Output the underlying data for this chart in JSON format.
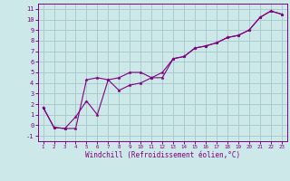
{
  "xlabel": "Windchill (Refroidissement éolien,°C)",
  "bg_color": "#cce8e8",
  "line_color": "#800080",
  "grid_color": "#aacccc",
  "x_ticks": [
    1,
    2,
    3,
    4,
    5,
    6,
    7,
    8,
    9,
    10,
    11,
    12,
    13,
    14,
    15,
    16,
    17,
    18,
    19,
    20,
    21,
    22,
    23
  ],
  "y_ticks": [
    -1,
    0,
    1,
    2,
    3,
    4,
    5,
    6,
    7,
    8,
    9,
    10,
    11
  ],
  "ylim": [
    -1.5,
    11.5
  ],
  "xlim": [
    0.5,
    23.5
  ],
  "line1_x": [
    1,
    2,
    3,
    4,
    5,
    6,
    7,
    8,
    9,
    10,
    11,
    12,
    13,
    14,
    15,
    16,
    17,
    18,
    19,
    20,
    21,
    22,
    23
  ],
  "line1_y": [
    1.7,
    -0.2,
    -0.3,
    -0.3,
    4.3,
    4.5,
    4.3,
    4.5,
    5.0,
    5.0,
    4.5,
    4.5,
    6.3,
    6.5,
    7.3,
    7.5,
    7.8,
    8.3,
    8.5,
    9.0,
    10.2,
    10.8,
    10.5
  ],
  "line2_x": [
    1,
    2,
    3,
    4,
    5,
    6,
    7,
    8,
    9,
    10,
    11,
    12,
    13,
    14,
    15,
    16,
    17,
    18,
    19,
    20,
    21,
    22,
    23
  ],
  "line2_y": [
    1.7,
    -0.2,
    -0.3,
    0.8,
    2.3,
    1.0,
    4.3,
    3.3,
    3.8,
    4.0,
    4.5,
    5.0,
    6.3,
    6.5,
    7.3,
    7.5,
    7.8,
    8.3,
    8.5,
    9.0,
    10.2,
    10.8,
    10.5
  ]
}
